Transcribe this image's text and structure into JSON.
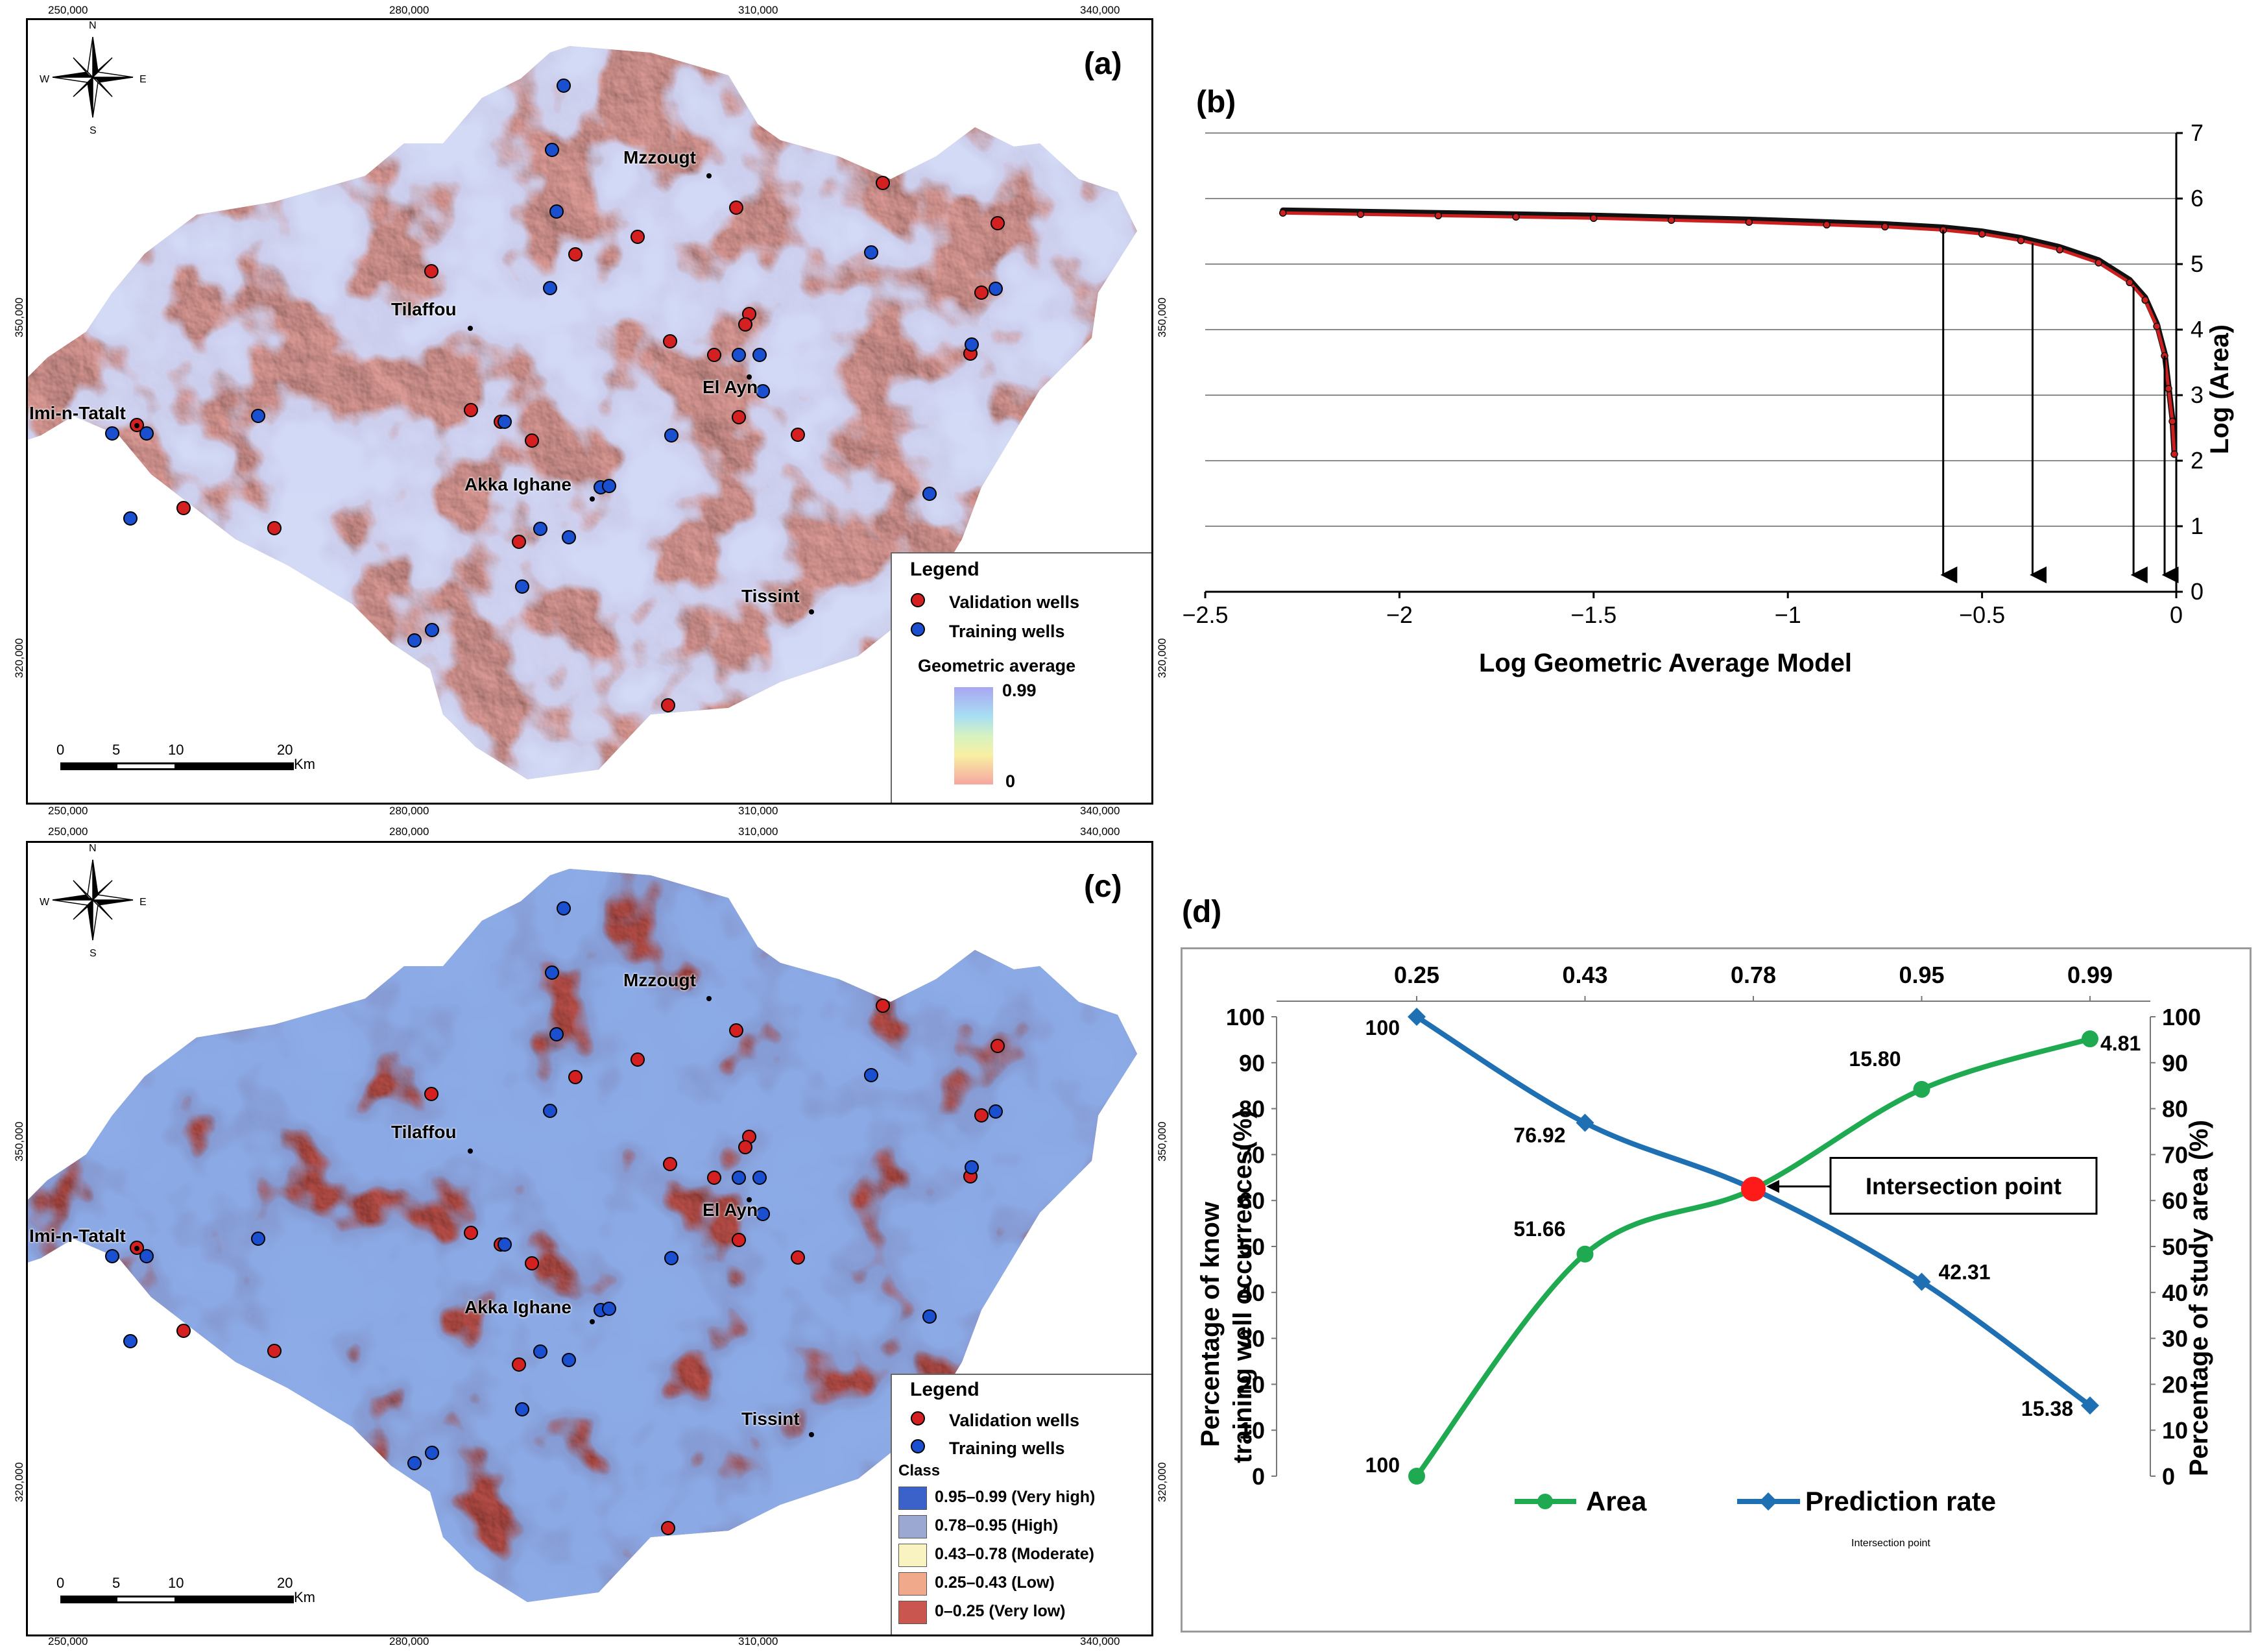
{
  "colors": {
    "validation": "#d42020",
    "training": "#1a4fd0",
    "very_high": "#3b62c8",
    "high": "#9aa8d2",
    "moderate": "#f9f3c2",
    "low": "#f0a98a",
    "very_low": "#c9564f",
    "area_series": "#1faa52",
    "prediction_series": "#1f6fb3",
    "model_points": "#cc1f1f"
  },
  "map_common": {
    "x_ticks": [
      "250,000",
      "280,000",
      "310,000",
      "340,000"
    ],
    "y_ticks": [
      "350,000",
      "320,000"
    ],
    "compass": {
      "n": "N",
      "s": "S",
      "e": "E",
      "w": "W"
    },
    "scale": {
      "labels": [
        "0",
        "5",
        "10",
        "20"
      ],
      "unit": "Km"
    },
    "places": [
      "Mzzougt",
      "Tilaffou",
      "El Ayn",
      "Imi-n-Tatalt",
      "Akka Ighane",
      "Tissint"
    ],
    "legend_title": "Legend",
    "validation_label": "Validation wells",
    "training_label": "Training wells"
  },
  "panel_a": {
    "letter": "(a)",
    "gradient_title": "Geometric average",
    "gradient_max": "0.99",
    "gradient_min": "0"
  },
  "panel_c": {
    "letter": "(c)",
    "class_title": "Class",
    "classes": [
      {
        "label": "0.95–0.99 (Very high)",
        "color": "#3b62c8"
      },
      {
        "label": "0.78–0.95 (High)",
        "color": "#9aa8d2"
      },
      {
        "label": "0.43–0.78 (Moderate)",
        "color": "#f9f3c2"
      },
      {
        "label": "0.25–0.43 (Low)",
        "color": "#f0a98a"
      },
      {
        "label": "0–0.25 (Very low)",
        "color": "#c9564f"
      }
    ]
  },
  "chart_data": [
    {
      "panel": "(b)",
      "type": "scatter",
      "xlabel": "Log Geometric Average Model",
      "ylabel": "Log (Area)",
      "xlim": [
        -2.5,
        0
      ],
      "ylim": [
        0,
        7
      ],
      "x_ticks": [
        "−2.5",
        "−2",
        "−1.5",
        "−1",
        "−0.5",
        "0"
      ],
      "y_ticks": [
        "0",
        "1",
        "2",
        "3",
        "4",
        "5",
        "6",
        "7"
      ],
      "points": [
        [
          -2.3,
          5.78
        ],
        [
          -2.1,
          5.76
        ],
        [
          -1.9,
          5.74
        ],
        [
          -1.7,
          5.72
        ],
        [
          -1.5,
          5.7
        ],
        [
          -1.3,
          5.67
        ],
        [
          -1.1,
          5.64
        ],
        [
          -0.9,
          5.6
        ],
        [
          -0.75,
          5.57
        ],
        [
          -0.6,
          5.52
        ],
        [
          -0.5,
          5.46
        ],
        [
          -0.4,
          5.36
        ],
        [
          -0.3,
          5.22
        ],
        [
          -0.2,
          5.02
        ],
        [
          -0.12,
          4.72
        ],
        [
          -0.08,
          4.45
        ],
        [
          -0.05,
          4.05
        ],
        [
          -0.03,
          3.6
        ],
        [
          -0.02,
          3.1
        ],
        [
          -0.01,
          2.6
        ],
        [
          -0.005,
          2.1
        ]
      ],
      "threshold_arrows_x": [
        -0.6,
        -0.37,
        -0.11,
        -0.03
      ]
    },
    {
      "panel": "(d)",
      "type": "line",
      "top_categories": [
        "0.25",
        "0.43",
        "0.78",
        "0.95",
        "0.99"
      ],
      "left_label": "Percentage of know training well occurrences(%)",
      "right_label": "Percentage of study area (%)",
      "left_ticks": [
        "0",
        "10",
        "20",
        "30",
        "40",
        "50",
        "60",
        "70",
        "80",
        "90",
        "100"
      ],
      "right_ticks": [
        "100",
        "90",
        "80",
        "70",
        "60",
        "50",
        "40",
        "30",
        "20",
        "10",
        "0"
      ],
      "series": [
        {
          "name": "Area",
          "values": [
            0,
            48.34,
            62.5,
            84.2,
            95.19
          ],
          "data_labels": [
            "100",
            "51.66",
            "",
            "15.80",
            "4.81"
          ]
        },
        {
          "name": "Prediction rate",
          "values": [
            100,
            76.92,
            62.5,
            42.31,
            15.38
          ],
          "data_labels": [
            "100",
            "76.92",
            "",
            "42.31",
            "15.38"
          ]
        }
      ],
      "annotation": "Intersection point",
      "intersection": {
        "category_index": 2,
        "value": 62.5
      }
    }
  ]
}
